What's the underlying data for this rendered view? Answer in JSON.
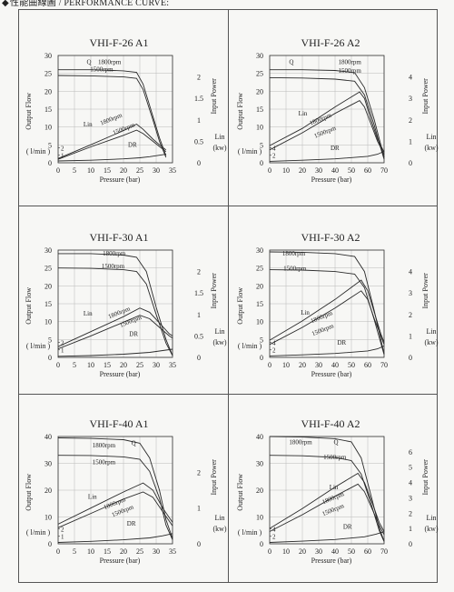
{
  "header": {
    "icon": "diamond-bullet",
    "text": "性能曲線圖 / PERFORMANCE CURVE:"
  },
  "chart_data": [
    {
      "type": "line",
      "title": "VHI-F-26 A1",
      "xlabel": "Pressure (bar)",
      "ylabel": "Output Flow",
      "ylabel_unit": "( l/min )",
      "y2label": "Input Power",
      "y3label": "Lin",
      "y3label_unit": "(kw)",
      "xlim": [
        0,
        35
      ],
      "ylim": [
        0,
        30
      ],
      "xticks": [
        "0",
        "5",
        "10",
        "15",
        "20",
        "25",
        "30",
        "35"
      ],
      "yticks": [
        "0",
        "5",
        "10",
        "15",
        "20",
        "25",
        "30"
      ],
      "y_minor_ticks": [
        "1",
        "2"
      ],
      "y2ticks": [
        "0",
        "0.5",
        "1",
        "1.5",
        "2"
      ],
      "y2lim": [
        0,
        2.5
      ],
      "labels": [
        "Q",
        "1800rpm",
        "1500rpm",
        "Lin",
        "1800rpm",
        "1500rpm",
        "DR"
      ],
      "series": [
        {
          "name": "Q 1800rpm",
          "axis": "flow",
          "x": [
            0,
            10,
            20,
            24,
            26,
            29,
            31,
            33
          ],
          "y": [
            26,
            26,
            25.7,
            25.3,
            22,
            13,
            7,
            2
          ]
        },
        {
          "name": "Q 1500rpm",
          "axis": "flow",
          "x": [
            0,
            10,
            20,
            24,
            26,
            29,
            31,
            33
          ],
          "y": [
            24.4,
            24.3,
            24,
            23.6,
            20.5,
            12,
            6,
            1.5
          ]
        },
        {
          "name": "Lin 1800rpm",
          "axis": "power",
          "x": [
            0,
            10,
            20,
            24,
            26,
            29,
            31,
            33
          ],
          "y": [
            0.1,
            0.42,
            0.75,
            0.9,
            0.78,
            0.55,
            0.42,
            0.3
          ]
        },
        {
          "name": "Lin 1500rpm",
          "axis": "power",
          "x": [
            0,
            10,
            20,
            24,
            26,
            29,
            31,
            33
          ],
          "y": [
            0.08,
            0.37,
            0.64,
            0.76,
            0.68,
            0.5,
            0.38,
            0.26
          ]
        },
        {
          "name": "DR",
          "axis": "flow",
          "x": [
            0,
            10,
            20,
            25,
            28,
            31,
            33
          ],
          "y": [
            0.5,
            0.7,
            1.1,
            1.4,
            1.7,
            2.1,
            2.4
          ]
        }
      ]
    },
    {
      "type": "line",
      "title": "VHI-F-26 A2",
      "xlabel": "Pressure (bar)",
      "ylabel": "Output Flow",
      "ylabel_unit": "( l/min )",
      "y2label": "Input Power",
      "y3label": "Lin",
      "y3label_unit": "(kw)",
      "xlim": [
        0,
        70
      ],
      "ylim": [
        0,
        30
      ],
      "xticks": [
        "0",
        "10",
        "20",
        "30",
        "40",
        "50",
        "60",
        "70"
      ],
      "yticks": [
        "0",
        "5",
        "10",
        "15",
        "20",
        "25",
        "30"
      ],
      "y_minor_ticks": [
        "2",
        "4"
      ],
      "y2ticks": [
        "0",
        "1",
        "2",
        "3",
        "4"
      ],
      "y2lim": [
        0,
        5
      ],
      "labels": [
        "Q",
        "1800rpm",
        "1500rpm",
        "Lin",
        "1800rpm",
        "1500rpm",
        "DR"
      ],
      "series": [
        {
          "name": "Q 1800rpm",
          "axis": "flow",
          "x": [
            0,
            20,
            40,
            52,
            58,
            64,
            68,
            70
          ],
          "y": [
            26,
            26,
            25.8,
            25.2,
            21,
            12,
            5,
            1.5
          ]
        },
        {
          "name": "Q 1500rpm",
          "axis": "flow",
          "x": [
            0,
            20,
            40,
            52,
            58,
            64,
            68,
            70
          ],
          "y": [
            23.8,
            23.7,
            23.4,
            22.8,
            19,
            10.5,
            4,
            1
          ]
        },
        {
          "name": "Lin 1800rpm",
          "axis": "power",
          "x": [
            0,
            20,
            40,
            55,
            58,
            62,
            66,
            70
          ],
          "y": [
            0.8,
            1.6,
            2.6,
            3.3,
            3.0,
            2.0,
            1.1,
            0.5
          ]
        },
        {
          "name": "Lin 1500rpm",
          "axis": "power",
          "x": [
            0,
            20,
            40,
            55,
            58,
            62,
            66,
            70
          ],
          "y": [
            0.6,
            1.4,
            2.3,
            2.9,
            2.6,
            1.8,
            1.0,
            0.4
          ]
        },
        {
          "name": "DR",
          "axis": "flow",
          "x": [
            0,
            20,
            40,
            60,
            66,
            70
          ],
          "y": [
            0.4,
            0.7,
            1.1,
            1.8,
            2.4,
            3.2
          ]
        }
      ]
    },
    {
      "type": "line",
      "title": "VHI-F-30 A1",
      "xlabel": "Pressure (bar)",
      "ylabel": "Output Flow",
      "ylabel_unit": "( l/min )",
      "y2label": "Input Power",
      "y3label": "Lin",
      "y3label_unit": "(kw)",
      "xlim": [
        0,
        35
      ],
      "ylim": [
        0,
        30
      ],
      "xticks": [
        "0",
        "5",
        "10",
        "15",
        "20",
        "25",
        "30",
        "35"
      ],
      "yticks": [
        "0",
        "5",
        "10",
        "15",
        "20",
        "25",
        "30"
      ],
      "y_minor_ticks": [
        "1",
        "2"
      ],
      "y2ticks": [
        "0",
        "0.5",
        "1",
        "1.5",
        "2"
      ],
      "y2lim": [
        0,
        2.5
      ],
      "labels": [
        "1800rpm",
        "1500rpm",
        "Lin",
        "1800rpm",
        "1500rpm",
        "DR"
      ],
      "series": [
        {
          "name": "Q 1800rpm",
          "axis": "flow",
          "x": [
            0,
            10,
            20,
            24,
            27,
            30,
            33,
            35
          ],
          "y": [
            29,
            29,
            28.6,
            28,
            24,
            14,
            5,
            0.5
          ]
        },
        {
          "name": "Q 1500rpm",
          "axis": "flow",
          "x": [
            0,
            10,
            20,
            24,
            27,
            30,
            33,
            35
          ],
          "y": [
            25,
            24.9,
            24.5,
            24,
            20.5,
            12,
            4,
            0.5
          ]
        },
        {
          "name": "Lin 1800rpm",
          "axis": "power",
          "x": [
            0,
            10,
            20,
            25,
            28,
            31,
            34,
            35
          ],
          "y": [
            0.25,
            0.6,
            0.95,
            1.15,
            1.05,
            0.8,
            0.55,
            0.5
          ]
        },
        {
          "name": "Lin 1500rpm",
          "axis": "power",
          "x": [
            0,
            10,
            20,
            25,
            28,
            31,
            34,
            35
          ],
          "y": [
            0.2,
            0.5,
            0.82,
            0.98,
            0.9,
            0.7,
            0.5,
            0.45
          ]
        },
        {
          "name": "DR",
          "axis": "flow",
          "x": [
            0,
            10,
            20,
            28,
            32,
            35
          ],
          "y": [
            0.3,
            0.5,
            0.9,
            1.4,
            1.9,
            2.3
          ]
        }
      ]
    },
    {
      "type": "line",
      "title": "VHI-F-30 A2",
      "xlabel": "Pressure (bar)",
      "ylabel": "Output Flow",
      "ylabel_unit": "( l/min )",
      "y2label": "Input Power",
      "y3label": "Lin",
      "y3label_unit": "(kw)",
      "xlim": [
        0,
        70
      ],
      "ylim": [
        0,
        30
      ],
      "xticks": [
        "0",
        "10",
        "20",
        "30",
        "40",
        "50",
        "60",
        "70"
      ],
      "yticks": [
        "0",
        "5",
        "10",
        "15",
        "20",
        "25",
        "30"
      ],
      "y_minor_ticks": [
        "2",
        "4"
      ],
      "y2ticks": [
        "0",
        "1",
        "2",
        "3",
        "4"
      ],
      "y2lim": [
        0,
        5
      ],
      "labels": [
        "1800rpm",
        "1500rpm",
        "Lin",
        "1800rpm",
        "1500rpm",
        "DR"
      ],
      "series": [
        {
          "name": "Q 1800rpm",
          "axis": "flow",
          "x": [
            0,
            20,
            40,
            52,
            58,
            64,
            68,
            70
          ],
          "y": [
            29.5,
            29.4,
            29,
            28.2,
            24,
            13,
            5,
            1
          ]
        },
        {
          "name": "Q 1500rpm",
          "axis": "flow",
          "x": [
            0,
            20,
            40,
            52,
            58,
            64,
            68,
            70
          ],
          "y": [
            24.5,
            24.4,
            24,
            23.3,
            19.5,
            10.5,
            4,
            0.8
          ]
        },
        {
          "name": "Lin 1800rpm",
          "axis": "power",
          "x": [
            0,
            20,
            40,
            56,
            60,
            64,
            68,
            70
          ],
          "y": [
            0.8,
            1.7,
            2.7,
            3.6,
            3.1,
            2.1,
            1.1,
            0.7
          ]
        },
        {
          "name": "Lin 1500rpm",
          "axis": "power",
          "x": [
            0,
            20,
            40,
            56,
            60,
            64,
            68,
            70
          ],
          "y": [
            0.6,
            1.4,
            2.3,
            3.1,
            2.7,
            1.8,
            1.0,
            0.6
          ]
        },
        {
          "name": "DR",
          "axis": "flow",
          "x": [
            0,
            20,
            40,
            60,
            66,
            70
          ],
          "y": [
            0.4,
            0.7,
            1.1,
            1.8,
            2.4,
            3.2
          ]
        }
      ]
    },
    {
      "type": "line",
      "title": "VHI-F-40 A1",
      "xlabel": "Pressure (bar)",
      "ylabel": "Output Flow",
      "ylabel_unit": "( l/min )",
      "y2label": "Input Power",
      "y3label": "Lin",
      "y3label_unit": "(kw)",
      "xlim": [
        0,
        35
      ],
      "ylim": [
        0,
        40
      ],
      "xticks": [
        "0",
        "5",
        "10",
        "15",
        "20",
        "25",
        "30",
        "35"
      ],
      "yticks": [
        "0",
        "10",
        "20",
        "30",
        "40"
      ],
      "y_minor_ticks": [
        "1",
        "2"
      ],
      "y2ticks": [
        "0",
        "1",
        "2"
      ],
      "y2lim": [
        0,
        3
      ],
      "labels": [
        "1800rpm",
        "Q",
        "1500rpm",
        "Lin",
        "1800rpm",
        "1500rpm",
        "DR"
      ],
      "series": [
        {
          "name": "Q 1800rpm",
          "axis": "flow",
          "x": [
            0,
            10,
            20,
            25,
            28,
            31,
            33,
            35
          ],
          "y": [
            39.5,
            39.3,
            38.8,
            37.5,
            32,
            20,
            9,
            2
          ]
        },
        {
          "name": "Q 1500rpm",
          "axis": "flow",
          "x": [
            0,
            10,
            20,
            25,
            28,
            31,
            33,
            35
          ],
          "y": [
            33,
            32.9,
            32.4,
            31.5,
            27,
            17,
            7,
            1.5
          ]
        },
        {
          "name": "Lin 1800rpm",
          "axis": "power",
          "x": [
            0,
            10,
            20,
            26,
            29,
            32,
            35
          ],
          "y": [
            0.55,
            1.0,
            1.45,
            1.7,
            1.5,
            1.0,
            0.6
          ]
        },
        {
          "name": "Lin 1500rpm",
          "axis": "power",
          "x": [
            0,
            10,
            20,
            26,
            29,
            32,
            35
          ],
          "y": [
            0.45,
            0.85,
            1.25,
            1.45,
            1.3,
            0.9,
            0.5
          ]
        },
        {
          "name": "DR",
          "axis": "flow",
          "x": [
            0,
            10,
            20,
            28,
            32,
            35
          ],
          "y": [
            0.5,
            0.9,
            1.5,
            2.2,
            3.0,
            3.8
          ]
        }
      ]
    },
    {
      "type": "line",
      "title": "VHI-F-40 A2",
      "xlabel": "Pressure (bar)",
      "ylabel": "Output Flow",
      "ylabel_unit": "( l/min )",
      "y2label": "Input Power",
      "y3label": "Lin",
      "y3label_unit": "(kw)",
      "xlim": [
        0,
        70
      ],
      "ylim": [
        0,
        40
      ],
      "xticks": [
        "0",
        "10",
        "20",
        "30",
        "40",
        "50",
        "60",
        "70"
      ],
      "yticks": [
        "0",
        "10",
        "20",
        "30",
        "40"
      ],
      "y_minor_ticks": [
        "2",
        "4"
      ],
      "y2ticks": [
        "0",
        "1",
        "2",
        "3",
        "4",
        "5",
        "6"
      ],
      "y2lim": [
        0,
        7
      ],
      "labels": [
        "1800rpm",
        "Q",
        "1500rpm",
        "Lin",
        "1800rpm",
        "1500rpm",
        "DR"
      ],
      "series": [
        {
          "name": "Q 1800rpm",
          "axis": "flow",
          "x": [
            0,
            20,
            40,
            50,
            56,
            62,
            67,
            70
          ],
          "y": [
            40,
            39.8,
            39.2,
            38,
            32,
            18,
            6,
            1
          ]
        },
        {
          "name": "Q 1500rpm",
          "axis": "flow",
          "x": [
            0,
            20,
            40,
            50,
            56,
            62,
            67,
            70
          ],
          "y": [
            33,
            32.8,
            32.2,
            31,
            26,
            15,
            5,
            0.8
          ]
        },
        {
          "name": "Lin 1800rpm",
          "axis": "power",
          "x": [
            0,
            20,
            40,
            54,
            58,
            63,
            67,
            70
          ],
          "y": [
            1.0,
            2.3,
            3.7,
            4.6,
            4.0,
            2.6,
            1.4,
            0.8
          ]
        },
        {
          "name": "Lin 1500rpm",
          "axis": "power",
          "x": [
            0,
            20,
            40,
            54,
            58,
            63,
            67,
            70
          ],
          "y": [
            0.8,
            1.9,
            3.1,
            3.9,
            3.4,
            2.2,
            1.2,
            0.6
          ]
        },
        {
          "name": "DR",
          "axis": "flow",
          "x": [
            0,
            20,
            40,
            58,
            65,
            70
          ],
          "y": [
            0.5,
            1.0,
            1.6,
            2.6,
            3.6,
            4.5
          ]
        }
      ]
    }
  ]
}
